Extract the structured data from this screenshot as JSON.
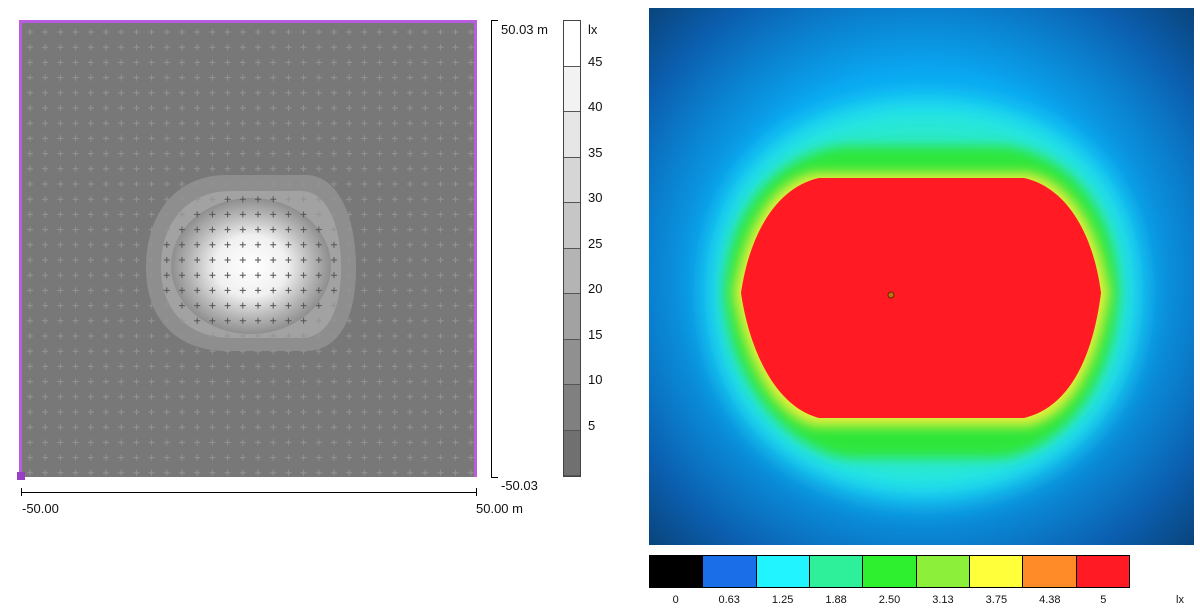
{
  "left_plot": {
    "y_top_label": "50.03 m",
    "y_bottom_label": "-50.03",
    "x_left_label": "-50.00",
    "x_right_label": "50.00 m"
  },
  "gray_legend": {
    "unit": "lx",
    "ticks": [
      "45",
      "40",
      "35",
      "30",
      "25",
      "20",
      "15",
      "10",
      "5"
    ]
  },
  "color_legend": {
    "unit": "lx",
    "labels": [
      "0",
      "0.63",
      "1.25",
      "1.88",
      "2.50",
      "3.13",
      "3.75",
      "4.38",
      "5"
    ],
    "colors": [
      "#000000",
      "#1a6ee8",
      "#22f4ff",
      "#2ef09a",
      "#2ef02e",
      "#8cf03a",
      "#ffff3a",
      "#ff8a28",
      "#ff1a24"
    ]
  },
  "colors": {
    "border_accent": "#b85ce0"
  }
}
